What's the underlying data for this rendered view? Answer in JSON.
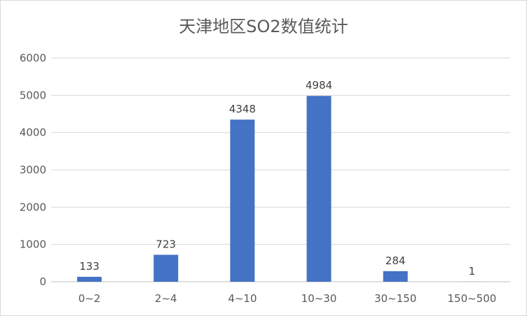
{
  "chart_data": {
    "type": "bar",
    "title": "天津地区SO2数值统计",
    "xlabel": "",
    "ylabel": "",
    "categories": [
      "0~2",
      "2~4",
      "4~10",
      "10~30",
      "30~150",
      "150~500"
    ],
    "values": [
      133,
      723,
      4348,
      4984,
      284,
      1
    ],
    "data_labels": [
      "133",
      "723",
      "4348",
      "4984",
      "284",
      "1"
    ],
    "ylim": [
      0,
      6000
    ],
    "yticks": [
      0,
      1000,
      2000,
      3000,
      4000,
      5000,
      6000
    ],
    "ytick_labels": [
      "0",
      "1000",
      "2000",
      "3000",
      "4000",
      "5000",
      "6000"
    ],
    "grid": true,
    "legend": "none",
    "bar_color": "#4472c4",
    "grid_color": "#d9d9d9"
  }
}
